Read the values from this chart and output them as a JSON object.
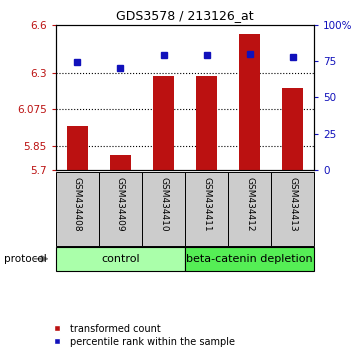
{
  "title": "GDS3578 / 213126_at",
  "samples": [
    "GSM434408",
    "GSM434409",
    "GSM434410",
    "GSM434411",
    "GSM434412",
    "GSM434413"
  ],
  "red_values": [
    5.97,
    5.795,
    6.285,
    6.285,
    6.545,
    6.21
  ],
  "blue_values": [
    74.5,
    70.5,
    79.5,
    79.5,
    80.0,
    78.0
  ],
  "ylim_left": [
    5.7,
    6.6
  ],
  "ylim_right": [
    0,
    100
  ],
  "yticks_left": [
    5.7,
    5.85,
    6.075,
    6.3,
    6.6
  ],
  "yticks_right": [
    0,
    25,
    50,
    75,
    100
  ],
  "ytick_labels_left": [
    "5.7",
    "5.85",
    "6.075",
    "6.3",
    "6.6"
  ],
  "ytick_labels_right": [
    "0",
    "25",
    "50",
    "75",
    "100%"
  ],
  "hlines": [
    6.3,
    6.075,
    5.85
  ],
  "control_label": "control",
  "depletion_label": "beta-catenin depletion",
  "protocol_label": "protocol",
  "legend_red": "transformed count",
  "legend_blue": "percentile rank within the sample",
  "bar_color": "#bb1111",
  "dot_color": "#1111bb",
  "control_color": "#aaffaa",
  "depletion_color": "#55ee55",
  "sample_bg_color": "#cccccc",
  "bar_width": 0.5,
  "fig_width": 3.61,
  "fig_height": 3.54,
  "dpi": 100
}
